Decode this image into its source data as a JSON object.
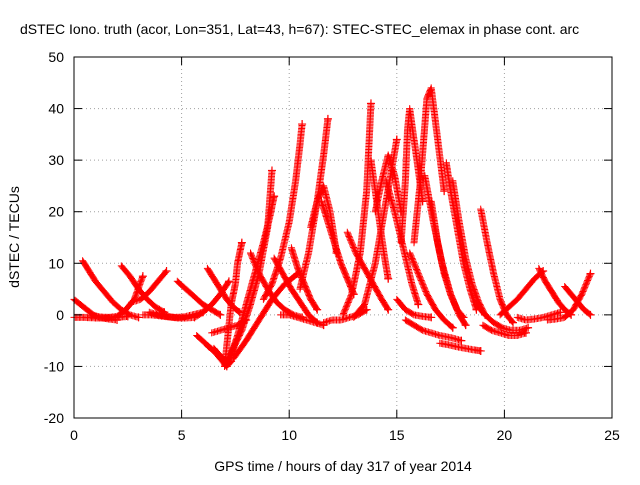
{
  "chart_data": {
    "type": "scatter",
    "title": "dSTEC Iono. truth (acor, Lon=351, Lat=43, h=67): STEC-STEC_elemax in phase cont. arc",
    "xlabel": "GPS time / hours of day 317 of year 2014",
    "ylabel": "dSTEC  / TECUs",
    "xlim": [
      0,
      25
    ],
    "ylim": [
      -20,
      50
    ],
    "x_ticks": [
      0,
      5,
      10,
      15,
      20,
      25
    ],
    "y_ticks": [
      -20,
      -10,
      0,
      10,
      20,
      30,
      40,
      50
    ],
    "grid": true,
    "marker": "+",
    "color": "#ff0000",
    "series": [
      {
        "x": [
          0.0,
          0.3,
          0.6,
          0.9,
          1.2,
          1.6,
          2.0
        ],
        "y": [
          3,
          2,
          1,
          0,
          -0.5,
          -0.8,
          -1
        ]
      },
      {
        "x": [
          0.0,
          0.5,
          1.0,
          1.5,
          2.0,
          2.5
        ],
        "y": [
          -0.5,
          -0.5,
          -0.6,
          -0.6,
          -0.5,
          -0.3
        ]
      },
      {
        "x": [
          0.4,
          0.7,
          1.0,
          1.4,
          1.8,
          2.2,
          2.6,
          3.0
        ],
        "y": [
          10.5,
          8.5,
          6.5,
          4.5,
          2.5,
          1,
          0,
          -0.5
        ]
      },
      {
        "x": [
          0.8,
          1.2,
          1.6,
          2.0,
          2.4,
          2.8,
          3.2
        ],
        "y": [
          -0.2,
          -0.4,
          -0.5,
          -0.3,
          1,
          3,
          7.5
        ]
      },
      {
        "x": [
          2.2,
          2.6,
          3.0,
          3.4,
          3.8,
          4.2
        ],
        "y": [
          9.5,
          7.5,
          5,
          3,
          1.5,
          0.5
        ]
      },
      {
        "x": [
          2.7,
          3.1,
          3.5,
          3.9,
          4.3
        ],
        "y": [
          2.5,
          3,
          4.5,
          6.5,
          8.5
        ]
      },
      {
        "x": [
          3.2,
          3.6,
          4.0,
          4.4,
          4.8,
          5.2,
          5.6
        ],
        "y": [
          0,
          0,
          -0.2,
          -0.4,
          -0.6,
          -0.6,
          -0.5
        ]
      },
      {
        "x": [
          3.5,
          3.9,
          4.3,
          4.7,
          5.1,
          5.5,
          6.0
        ],
        "y": [
          0.5,
          0,
          -0.3,
          -0.5,
          -0.4,
          0,
          0.5
        ]
      },
      {
        "x": [
          4.8,
          5.2,
          5.6,
          6.0,
          6.4,
          6.8
        ],
        "y": [
          6.5,
          5,
          3.5,
          2,
          1,
          0
        ]
      },
      {
        "x": [
          5.6,
          6.0,
          6.4,
          6.8,
          7.2
        ],
        "y": [
          -0.5,
          0.5,
          2,
          4,
          6.5
        ]
      },
      {
        "x": [
          6.2,
          6.5,
          6.8,
          7.1,
          7.4,
          7.7
        ],
        "y": [
          9,
          7,
          5,
          3,
          1.5,
          0.5
        ]
      },
      {
        "x": [
          6.4,
          6.8,
          7.2,
          7.6,
          8.0
        ],
        "y": [
          -3.5,
          -3,
          -2.5,
          -2,
          -1
        ]
      },
      {
        "x": [
          5.7,
          6.1,
          6.5,
          6.8,
          7.1
        ],
        "y": [
          -4,
          -5.5,
          -7,
          -8.5,
          -10
        ]
      },
      {
        "x": [
          6.2,
          6.5,
          6.8,
          7.1
        ],
        "y": [
          -6,
          -7,
          -8,
          -9
        ]
      },
      {
        "x": [
          6.5,
          6.7,
          6.9,
          7.0,
          7.1,
          7.2,
          7.3
        ],
        "y": [
          -6.5,
          -7.5,
          -8.5,
          -9.3,
          -9.8,
          -9.5,
          -9
        ]
      },
      {
        "x": [
          7.0,
          7.1,
          7.2,
          7.3,
          7.5,
          7.6,
          7.8
        ],
        "y": [
          -10,
          -6,
          -2,
          2,
          6,
          10,
          14
        ]
      },
      {
        "x": [
          7.0,
          7.4,
          7.8,
          8.2,
          8.6,
          9.0,
          9.2
        ],
        "y": [
          -10,
          -6.5,
          -3,
          2,
          8,
          17,
          28
        ]
      },
      {
        "x": [
          7.2,
          7.6,
          8.0,
          8.4,
          8.8,
          9.1,
          9.3
        ],
        "y": [
          -9,
          -4,
          2,
          8,
          14,
          19,
          23
        ]
      },
      {
        "x": [
          7.4,
          8.0,
          8.6,
          9.2,
          9.8,
          10.4
        ],
        "y": [
          -8.5,
          -5,
          -1,
          3,
          6,
          8
        ]
      },
      {
        "x": [
          8.2,
          8.6,
          9.0,
          9.4,
          9.8,
          10.2,
          10.6
        ],
        "y": [
          12,
          8,
          5,
          2.5,
          1,
          0,
          -0.5
        ]
      },
      {
        "x": [
          8.8,
          9.2,
          9.6,
          10.0,
          10.3,
          10.5,
          10.6
        ],
        "y": [
          3,
          6,
          11,
          18,
          26,
          33,
          37
        ]
      },
      {
        "x": [
          9.3,
          9.7,
          10.1,
          10.5,
          10.9,
          11.3
        ],
        "y": [
          11,
          8,
          5,
          2.5,
          0,
          -1.5
        ]
      },
      {
        "x": [
          9.6,
          10.0,
          10.4,
          10.8,
          11.2,
          11.6
        ],
        "y": [
          0,
          0,
          -0.5,
          -1,
          -1.5,
          -2
        ]
      },
      {
        "x": [
          10.1,
          10.4,
          10.7,
          11.0,
          11.3
        ],
        "y": [
          13,
          9,
          6,
          3,
          1
        ]
      },
      {
        "x": [
          10.5,
          10.9,
          11.3,
          11.6,
          11.8
        ],
        "y": [
          5,
          12,
          22,
          31,
          38
        ]
      },
      {
        "x": [
          11.0,
          11.3,
          11.6,
          11.9,
          12.2
        ],
        "y": [
          17,
          22,
          25,
          20,
          12
        ]
      },
      {
        "x": [
          11.5,
          11.8,
          12.1,
          12.4,
          12.7,
          13.0
        ],
        "y": [
          22,
          18,
          14,
          10,
          7,
          4
        ]
      },
      {
        "x": [
          11.6,
          12.0,
          12.4,
          12.8,
          13.2,
          13.6
        ],
        "y": [
          -1.5,
          -1,
          -1,
          -0.5,
          0,
          1
        ]
      },
      {
        "x": [
          12.5,
          12.9,
          13.3,
          13.6,
          13.8
        ],
        "y": [
          0,
          4,
          12,
          24,
          41
        ]
      },
      {
        "x": [
          12.7,
          13.1,
          13.5,
          13.9,
          14.3,
          14.6
        ],
        "y": [
          16,
          12,
          9,
          6,
          3,
          1
        ]
      },
      {
        "x": [
          13.0,
          13.5,
          14.0,
          14.5,
          15.0
        ],
        "y": [
          -0.5,
          2,
          10,
          22,
          34
        ]
      },
      {
        "x": [
          13.8,
          14.0,
          14.2,
          14.4,
          14.6
        ],
        "y": [
          30,
          24,
          18,
          12,
          7
        ]
      },
      {
        "x": [
          14.0,
          14.3,
          14.6,
          14.9,
          15.2
        ],
        "y": [
          20,
          26,
          31,
          27,
          20
        ]
      },
      {
        "x": [
          14.5,
          14.9,
          15.3,
          15.7,
          16.0
        ],
        "y": [
          26,
          20,
          13,
          6,
          2
        ]
      },
      {
        "x": [
          15.0,
          15.4,
          15.8,
          16.2,
          16.6
        ],
        "y": [
          3,
          1,
          0,
          -0.3,
          -0.5
        ]
      },
      {
        "x": [
          15.2,
          15.4,
          15.5,
          15.6,
          15.9,
          16.2
        ],
        "y": [
          14,
          26,
          36,
          40,
          31,
          22
        ]
      },
      {
        "x": [
          15.6,
          16.0,
          16.4,
          16.8,
          17.2,
          17.6
        ],
        "y": [
          12,
          8,
          4,
          1,
          -1,
          -2.5
        ]
      },
      {
        "x": [
          15.4,
          15.8,
          16.2,
          16.6,
          17.0,
          17.6,
          18.0
        ],
        "y": [
          -1,
          -2,
          -3,
          -3.5,
          -4,
          -4.5,
          -5
        ]
      },
      {
        "x": [
          15.8,
          16.1,
          16.4,
          16.6,
          16.9,
          17.2
        ],
        "y": [
          14,
          26,
          42,
          44,
          34,
          24
        ]
      },
      {
        "x": [
          16.3,
          16.7,
          17.1,
          17.5,
          17.9,
          18.2
        ],
        "y": [
          27,
          18,
          10,
          4,
          0,
          -2
        ]
      },
      {
        "x": [
          16.6,
          16.9,
          17.2,
          17.5,
          17.8,
          18.1
        ],
        "y": [
          22,
          14,
          8,
          4,
          1,
          -0.5
        ]
      },
      {
        "x": [
          17.3,
          17.5,
          17.8,
          18.1,
          18.4,
          18.7
        ],
        "y": [
          29.5,
          24,
          17,
          10,
          5,
          1
        ]
      },
      {
        "x": [
          17.6,
          17.9,
          18.2,
          18.5,
          18.8,
          19.1
        ],
        "y": [
          26,
          18,
          11,
          6,
          2.5,
          0
        ]
      },
      {
        "x": [
          17.0,
          17.4,
          17.8,
          18.2,
          18.6,
          18.9
        ],
        "y": [
          -5.5,
          -5.8,
          -6.2,
          -6.5,
          -6.8,
          -7
        ]
      },
      {
        "x": [
          18.9,
          19.2,
          19.5,
          19.8,
          20.1,
          20.4
        ],
        "y": [
          20.5,
          14,
          8,
          3,
          0,
          -1.5
        ]
      },
      {
        "x": [
          18.7,
          19.1,
          19.5,
          19.9,
          20.3,
          20.7,
          21.1
        ],
        "y": [
          2,
          0,
          -1.5,
          -2.5,
          -3,
          -3,
          -2.5
        ]
      },
      {
        "x": [
          19.0,
          19.4,
          19.8,
          20.2,
          20.6,
          21.0
        ],
        "y": [
          -2,
          -3,
          -3.5,
          -4,
          -4,
          -3.5
        ]
      },
      {
        "x": [
          19.8,
          20.2,
          20.6,
          21.0,
          21.4,
          21.8
        ],
        "y": [
          0,
          1.5,
          3,
          5,
          7,
          8.5
        ]
      },
      {
        "x": [
          20.6,
          21.0,
          21.4,
          21.8,
          22.2,
          22.6
        ],
        "y": [
          -0.5,
          -1,
          -0.8,
          -0.5,
          0,
          0.5
        ]
      },
      {
        "x": [
          21.6,
          21.9,
          22.2,
          22.5,
          22.8,
          23.1
        ],
        "y": [
          9,
          6.5,
          4.5,
          2.5,
          1,
          0
        ]
      },
      {
        "x": [
          22.0,
          22.4,
          22.8,
          23.2,
          23.6,
          24.0
        ],
        "y": [
          -1,
          -0.8,
          -0.5,
          1,
          4,
          8
        ]
      },
      {
        "x": [
          22.8,
          23.1,
          23.4,
          23.7,
          24.0
        ],
        "y": [
          5.5,
          4,
          2.5,
          1,
          0
        ]
      }
    ]
  }
}
